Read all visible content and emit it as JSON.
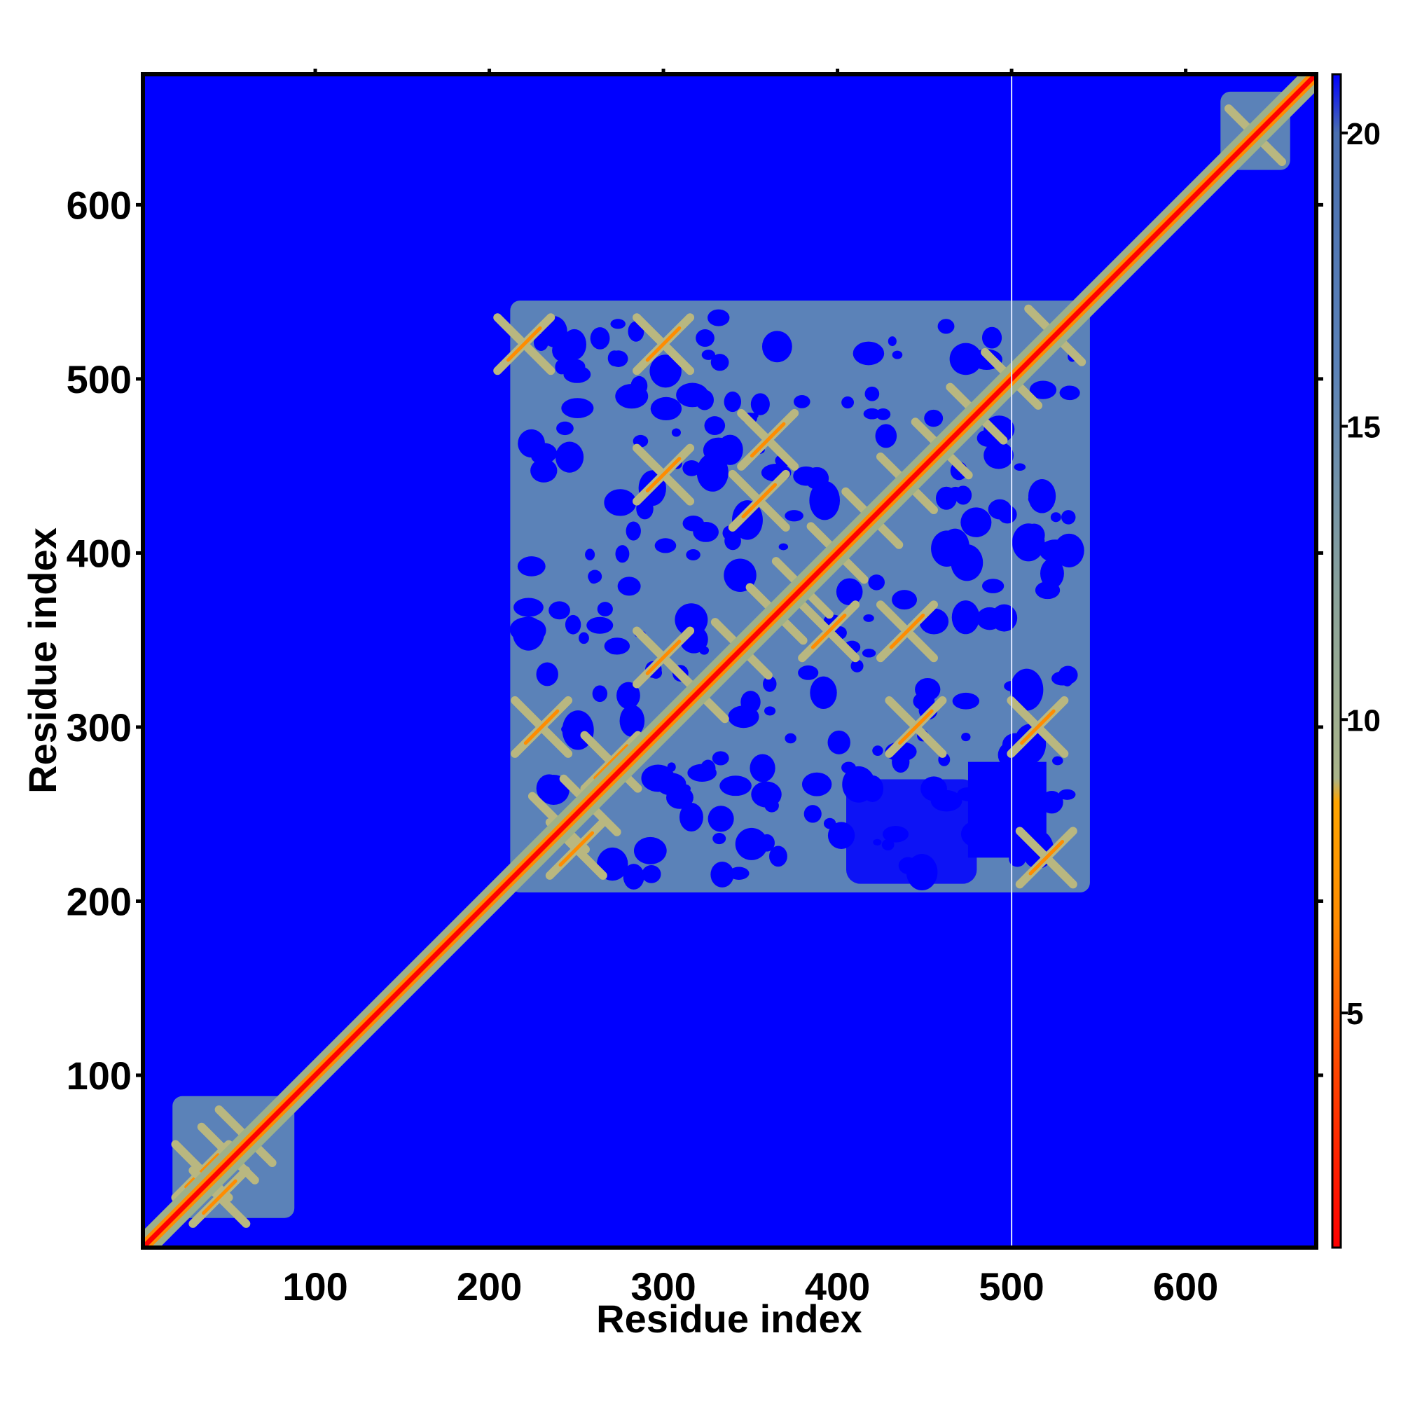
{
  "chart_data": {
    "type": "heatmap",
    "title": "",
    "xlabel": "Residue index",
    "ylabel": "Residue index",
    "xlim": [
      1,
      675
    ],
    "ylim": [
      1,
      675
    ],
    "x_ticks": [
      100,
      200,
      300,
      400,
      500,
      600
    ],
    "y_ticks": [
      100,
      200,
      300,
      400,
      500,
      600
    ],
    "colorbar": {
      "range": [
        1,
        21
      ],
      "ticks": [
        5,
        10,
        15,
        20
      ],
      "colors": [
        "#ff0000",
        "#ff7f00",
        "#ffa500",
        "#9db08a",
        "#5b82b8",
        "#0000ff"
      ]
    },
    "background_color": "#0000ff",
    "diagonal_color": "#ff0000",
    "domains": [
      {
        "x": [
          18,
          88
        ],
        "y": [
          18,
          88
        ]
      },
      {
        "x": [
          212,
          545
        ],
        "y": [
          205,
          545
        ]
      },
      {
        "x": [
          620,
          660
        ],
        "y": [
          620,
          665
        ]
      }
    ],
    "gap_line_x": 500
  }
}
